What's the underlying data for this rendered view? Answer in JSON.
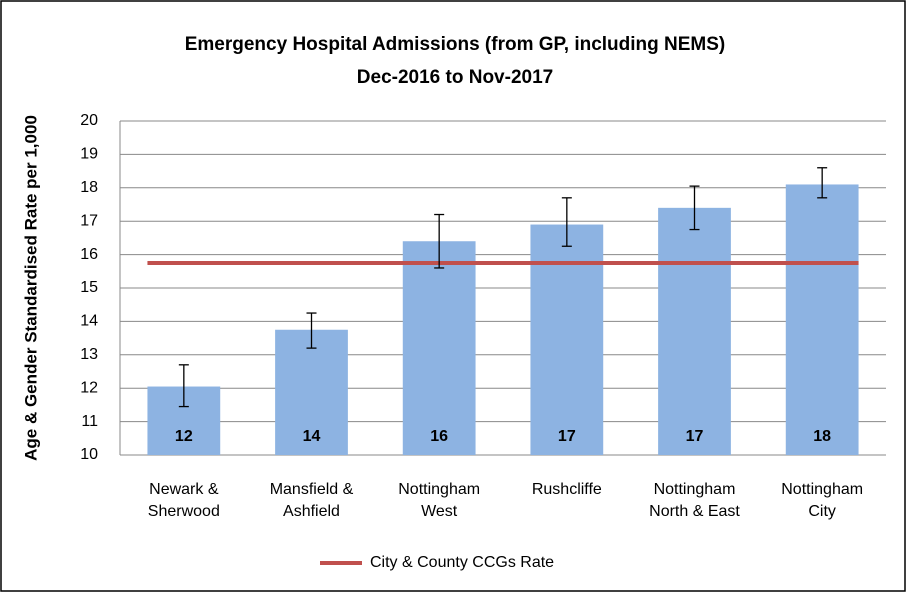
{
  "chart_data": {
    "type": "bar",
    "title": "Emergency Hospital Admissions (from GP, including NEMS)",
    "subtitle": "Dec-2016 to Nov-2017",
    "y_label": "Age & Gender Standardised Rate per 1,000",
    "categories": [
      [
        "Newark &",
        "Sherwood"
      ],
      [
        "Mansfield &",
        "Ashfield"
      ],
      [
        "Nottingham",
        "West"
      ],
      [
        "Rushcliffe"
      ],
      [
        "Nottingham",
        "North & East"
      ],
      [
        "Nottingham",
        "City"
      ]
    ],
    "values": [
      12.05,
      13.75,
      16.4,
      16.9,
      17.4,
      18.1
    ],
    "value_labels": [
      "12",
      "14",
      "16",
      "17",
      "17",
      "18"
    ],
    "ci_lower": [
      11.45,
      13.2,
      15.6,
      16.25,
      16.75,
      17.7
    ],
    "ci_upper": [
      12.7,
      14.25,
      17.2,
      17.7,
      18.05,
      18.6
    ],
    "color": "#8db3e2",
    "reference_line": {
      "name": "City & County CCGs Rate",
      "value": 15.75,
      "color": "#c0504d"
    },
    "ylim": [
      10,
      20
    ],
    "yticks": [
      10,
      11,
      12,
      13,
      14,
      15,
      16,
      17,
      18,
      19,
      20
    ],
    "grid": true,
    "legend": "bottom"
  }
}
